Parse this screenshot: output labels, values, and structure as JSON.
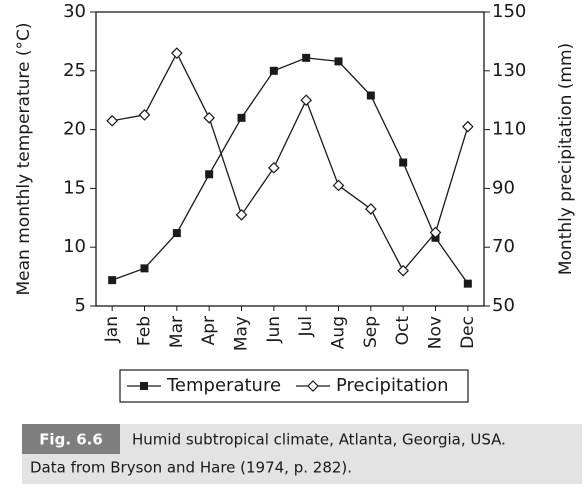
{
  "chart_data": {
    "type": "line",
    "categories": [
      "Jan",
      "Feb",
      "Mar",
      "Apr",
      "May",
      "Jun",
      "Jul",
      "Aug",
      "Sep",
      "Oct",
      "Nov",
      "Dec"
    ],
    "ylabel": "Mean monthly temperature (°C)",
    "y2label": "Monthly precipitation (mm)",
    "ylim": [
      5,
      30
    ],
    "yticks": [
      5,
      10,
      15,
      20,
      25,
      30
    ],
    "y2lim": [
      50,
      150
    ],
    "y2ticks": [
      50,
      70,
      90,
      110,
      130,
      150
    ],
    "series": [
      {
        "name": "Temperature",
        "color": "#1a1a1a",
        "marker": "square",
        "values": [
          7.2,
          8.2,
          11.2,
          16.2,
          21.0,
          25.0,
          26.1,
          25.8,
          22.9,
          17.2,
          10.8,
          6.9
        ]
      },
      {
        "name": "Precipitation",
        "color": "#1a1a1a",
        "marker": "diamond",
        "axis": "y2",
        "values": [
          113,
          115,
          136,
          114,
          81,
          97,
          120,
          91,
          83,
          62,
          75,
          111
        ]
      }
    ],
    "legend": "bottom",
    "figure_label": "Fig. 6.6",
    "caption": [
      "Humid subtropical climate, Atlanta, Georgia, USA.",
      "Data from Bryson and Hare (1974, p. 282)."
    ]
  }
}
